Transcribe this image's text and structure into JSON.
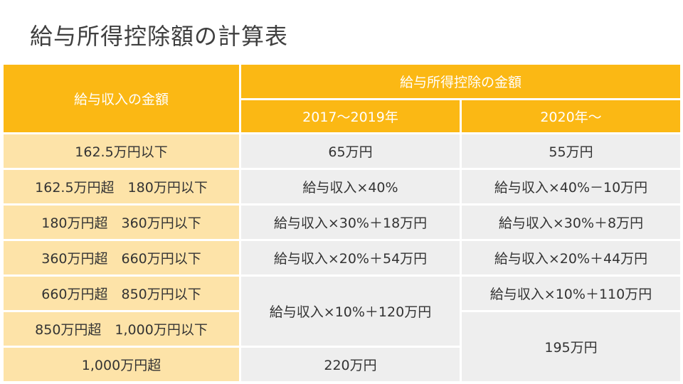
{
  "title": "給与所得控除額の計算表",
  "header": {
    "income_col": "給与収入の金額",
    "deduction_group": "給与所得控除の金額",
    "period1": "2017～2019年",
    "period2": "2020年～"
  },
  "rows": [
    {
      "income": "162.5万円以下",
      "p1": "65万円",
      "p2": "55万円"
    },
    {
      "income": "162.5万円超　180万円以下",
      "p1": "給与収入×40%",
      "p2": "給与収入×40%－10万円"
    },
    {
      "income": "180万円超　360万円以下",
      "p1": "給与収入×30%＋18万円",
      "p2": "給与収入×30%＋8万円"
    },
    {
      "income": "360万円超　660万円以下",
      "p1": "給与収入×20%＋54万円",
      "p2": "給与収入×20%＋44万円"
    },
    {
      "income": "660万円超　850万円以下",
      "p1": "給与収入×10%＋120万円",
      "p2": "給与収入×10%＋110万円"
    },
    {
      "income": "850万円超　1,000万円以下",
      "p2": "195万円"
    },
    {
      "income": "1,000万円超",
      "p1": "220万円"
    }
  ]
}
